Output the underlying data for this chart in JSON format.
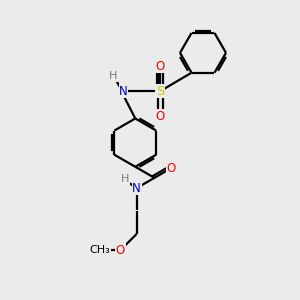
{
  "background_color": "#ebebeb",
  "bond_color": "#000000",
  "atom_colors": {
    "N": "#0000cc",
    "O": "#ff0000",
    "S": "#cccc00",
    "H": "#7a7a7a"
  },
  "figsize": [
    3.0,
    3.0
  ],
  "dpi": 100,
  "lw": 1.6,
  "fs": 8.5
}
